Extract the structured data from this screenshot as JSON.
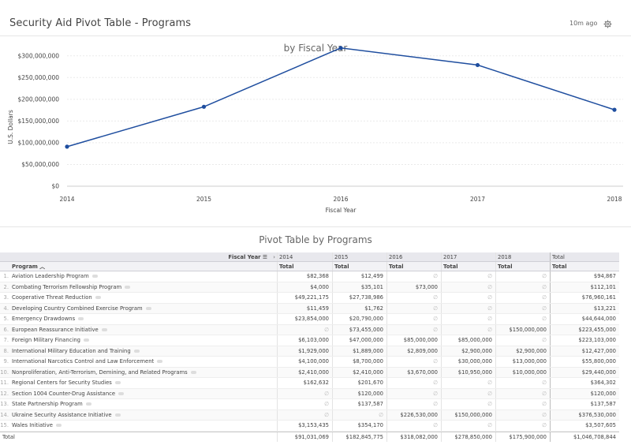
{
  "header": {
    "title": "Security Aid Pivot Table - Programs",
    "updated": "10m ago",
    "settings_icon": "gear-icon"
  },
  "chart_data": {
    "type": "line",
    "title": "by Fiscal Year",
    "xlabel": "Fiscal Year",
    "ylabel": "U.S. Dollars",
    "x": [
      "2014",
      "2015",
      "2016",
      "2017",
      "2018"
    ],
    "values": [
      91031069,
      182845775,
      318082000,
      278850000,
      175900000
    ],
    "ylim": [
      0,
      325000000
    ],
    "yticks": [
      0,
      50000000,
      100000000,
      150000000,
      200000000,
      250000000,
      300000000
    ],
    "ytick_labels": [
      "$0",
      "$50,000,000",
      "$100,000,000",
      "$150,000,000",
      "$200,000,000",
      "$250,000,000",
      "$300,000,000"
    ],
    "color": "#1f4e9f",
    "grid": true
  },
  "pivot": {
    "title": "Pivot Table by Programs",
    "column_field": "Fiscal Year",
    "row_field": "Program",
    "years": [
      "2014",
      "2015",
      "2016",
      "2017",
      "2018",
      "Total"
    ],
    "subheader": "Total",
    "rows": [
      {
        "n": "1.",
        "name": "Aviation Leadership Program",
        "v": [
          "$82,368",
          "$12,499",
          "∅",
          "∅",
          "∅",
          "$94,867"
        ]
      },
      {
        "n": "2.",
        "name": "Combating Terrorism Fellowship Program",
        "v": [
          "$4,000",
          "$35,101",
          "$73,000",
          "∅",
          "∅",
          "$112,101"
        ]
      },
      {
        "n": "3.",
        "name": "Cooperative Threat Reduction",
        "v": [
          "$49,221,175",
          "$27,738,986",
          "∅",
          "∅",
          "∅",
          "$76,960,161"
        ]
      },
      {
        "n": "4.",
        "name": "Developing Country Combined Exercise Program",
        "v": [
          "$11,459",
          "$1,762",
          "∅",
          "∅",
          "∅",
          "$13,221"
        ]
      },
      {
        "n": "5.",
        "name": "Emergency Drawdowns",
        "v": [
          "$23,854,000",
          "$20,790,000",
          "∅",
          "∅",
          "∅",
          "$44,644,000"
        ]
      },
      {
        "n": "6.",
        "name": "European Reassurance Initiative",
        "v": [
          "∅",
          "$73,455,000",
          "∅",
          "∅",
          "$150,000,000",
          "$223,455,000"
        ]
      },
      {
        "n": "7.",
        "name": "Foreign Military Financing",
        "v": [
          "$6,103,000",
          "$47,000,000",
          "$85,000,000",
          "$85,000,000",
          "∅",
          "$223,103,000"
        ]
      },
      {
        "n": "8.",
        "name": "International Military Education and Training",
        "v": [
          "$1,929,000",
          "$1,889,000",
          "$2,809,000",
          "$2,900,000",
          "$2,900,000",
          "$12,427,000"
        ]
      },
      {
        "n": "9.",
        "name": "International Narcotics Control and Law Enforcement",
        "v": [
          "$4,100,000",
          "$8,700,000",
          "∅",
          "$30,000,000",
          "$13,000,000",
          "$55,800,000"
        ]
      },
      {
        "n": "10.",
        "name": "Nonproliferation, Anti-Terrorism, Demining, and Related Programs",
        "v": [
          "$2,410,000",
          "$2,410,000",
          "$3,670,000",
          "$10,950,000",
          "$10,000,000",
          "$29,440,000"
        ]
      },
      {
        "n": "11.",
        "name": "Regional Centers for Security Studies",
        "v": [
          "$162,632",
          "$201,670",
          "∅",
          "∅",
          "∅",
          "$364,302"
        ]
      },
      {
        "n": "12.",
        "name": "Section 1004 Counter-Drug Assistance",
        "v": [
          "∅",
          "$120,000",
          "∅",
          "∅",
          "∅",
          "$120,000"
        ]
      },
      {
        "n": "13.",
        "name": "State Partnership Program",
        "v": [
          "∅",
          "$137,587",
          "∅",
          "∅",
          "∅",
          "$137,587"
        ]
      },
      {
        "n": "14.",
        "name": "Ukraine Security Assistance Initiative",
        "v": [
          "∅",
          "∅",
          "$226,530,000",
          "$150,000,000",
          "∅",
          "$376,530,000"
        ]
      },
      {
        "n": "15.",
        "name": "Wales Initiative",
        "v": [
          "$3,153,435",
          "$354,170",
          "∅",
          "∅",
          "∅",
          "$3,507,605"
        ]
      }
    ],
    "total_label": "Total",
    "totals": [
      "$91,031,069",
      "$182,845,775",
      "$318,082,000",
      "$278,850,000",
      "$175,900,000",
      "$1,046,708,844"
    ]
  }
}
